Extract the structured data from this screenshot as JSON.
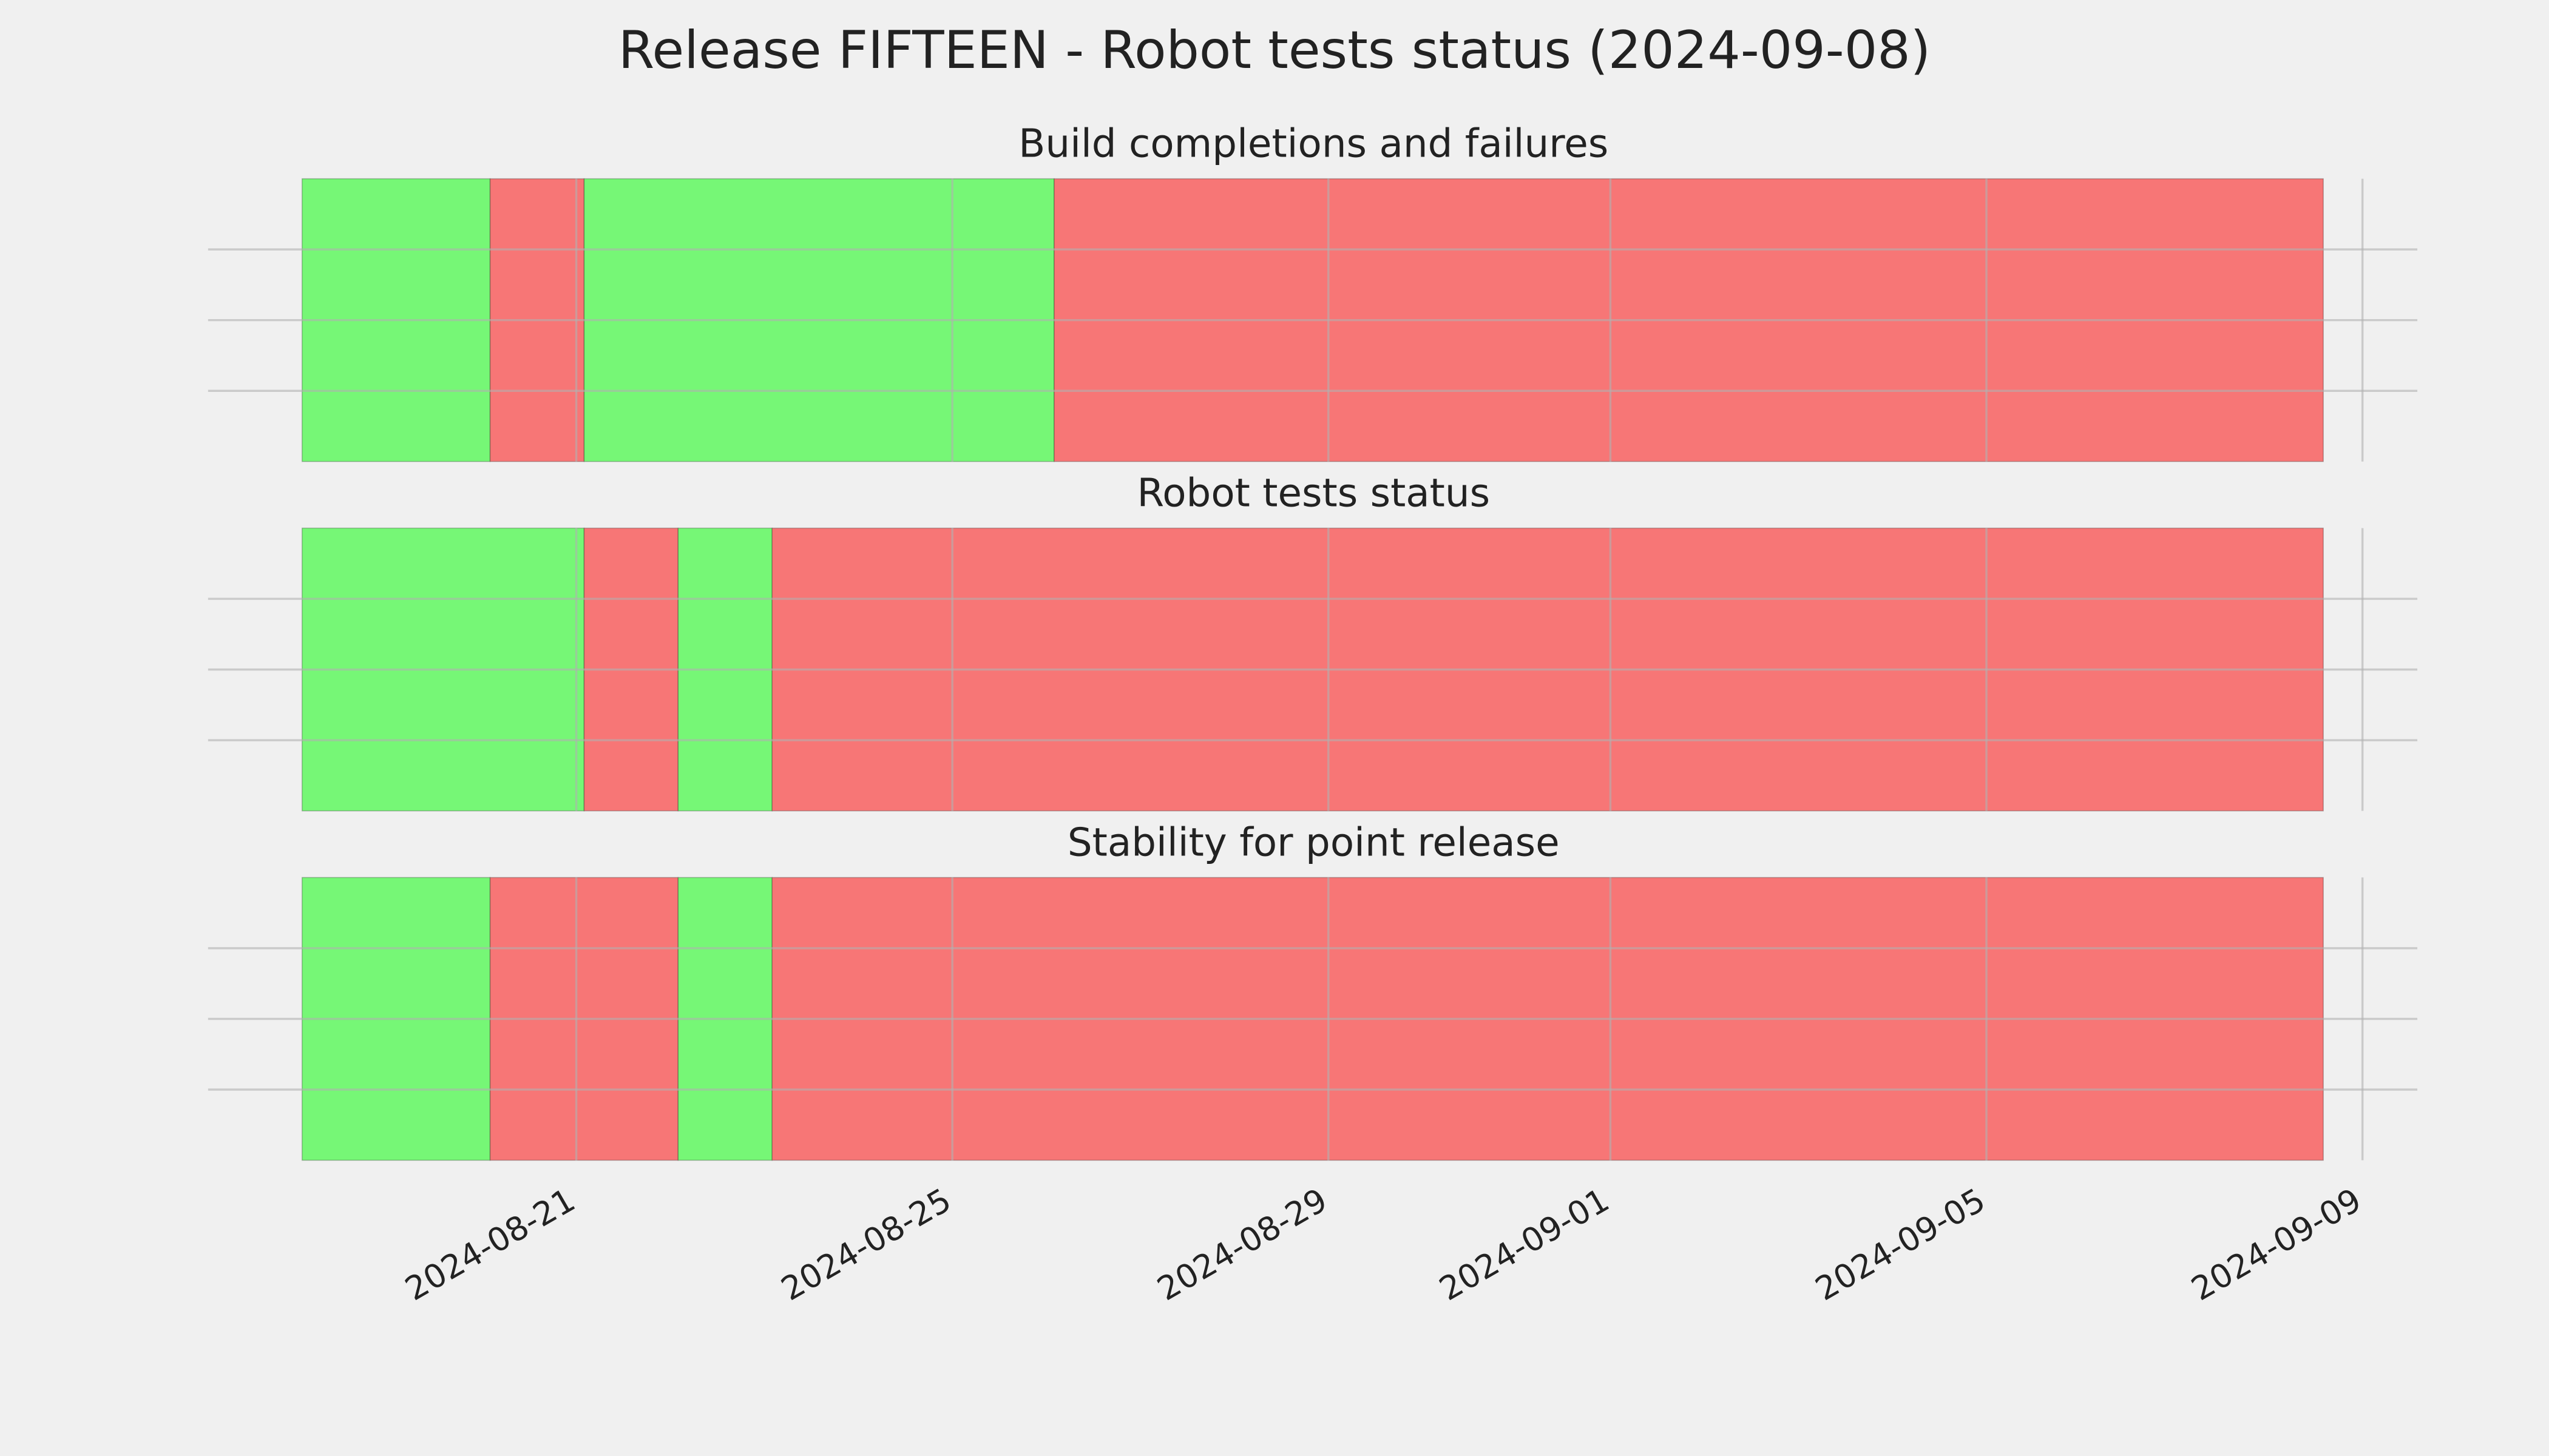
{
  "title": "Release FIFTEEN - Robot tests status (2024-09-08)",
  "chart_data": [
    {
      "type": "timeline",
      "title": "Build completions and failures",
      "segments": [
        {
          "start": "2024-08-18T02:00",
          "end": "2024-08-20T02:00",
          "color": "#76f776"
        },
        {
          "start": "2024-08-20T02:00",
          "end": "2024-08-21T02:00",
          "color": "#f77676"
        },
        {
          "start": "2024-08-21T02:00",
          "end": "2024-08-26T02:00",
          "color": "#76f776"
        },
        {
          "start": "2024-08-26T02:00",
          "end": "2024-09-08T14:00",
          "color": "#f77676"
        }
      ],
      "xlim": [
        "2024-08-17T02:00",
        "2024-09-09T14:00"
      ],
      "xticks": [
        "2024-08-21",
        "2024-08-25",
        "2024-08-29",
        "2024-09-01",
        "2024-09-05",
        "2024-09-09"
      ],
      "ylim": [
        0,
        1
      ],
      "yticks": [
        0.25,
        0.5,
        0.75
      ],
      "grid": true
    },
    {
      "type": "timeline",
      "title": "Robot tests status",
      "segments": [
        {
          "start": "2024-08-18T02:00",
          "end": "2024-08-21T02:00",
          "color": "#76f776"
        },
        {
          "start": "2024-08-21T02:00",
          "end": "2024-08-22T02:00",
          "color": "#f77676"
        },
        {
          "start": "2024-08-22T02:00",
          "end": "2024-08-23T02:00",
          "color": "#76f776"
        },
        {
          "start": "2024-08-23T02:00",
          "end": "2024-09-08T14:00",
          "color": "#f77676"
        }
      ],
      "xlim": [
        "2024-08-17T02:00",
        "2024-09-09T14:00"
      ],
      "xticks": [
        "2024-08-21",
        "2024-08-25",
        "2024-08-29",
        "2024-09-01",
        "2024-09-05",
        "2024-09-09"
      ],
      "ylim": [
        0,
        1
      ],
      "yticks": [
        0.25,
        0.5,
        0.75
      ],
      "grid": true
    },
    {
      "type": "timeline",
      "title": "Stability for point release",
      "segments": [
        {
          "start": "2024-08-18T02:00",
          "end": "2024-08-20T02:00",
          "color": "#76f776"
        },
        {
          "start": "2024-08-20T02:00",
          "end": "2024-08-22T02:00",
          "color": "#f77676"
        },
        {
          "start": "2024-08-22T02:00",
          "end": "2024-08-23T02:00",
          "color": "#76f776"
        },
        {
          "start": "2024-08-23T02:00",
          "end": "2024-09-08T14:00",
          "color": "#f77676"
        }
      ],
      "xlim": [
        "2024-08-17T02:00",
        "2024-09-09T14:00"
      ],
      "xticks": [
        "2024-08-21",
        "2024-08-25",
        "2024-08-29",
        "2024-09-01",
        "2024-09-05",
        "2024-09-09"
      ],
      "ylim": [
        0,
        1
      ],
      "yticks": [
        0.25,
        0.5,
        0.75
      ],
      "grid": true,
      "show_xtick_labels": true
    }
  ]
}
